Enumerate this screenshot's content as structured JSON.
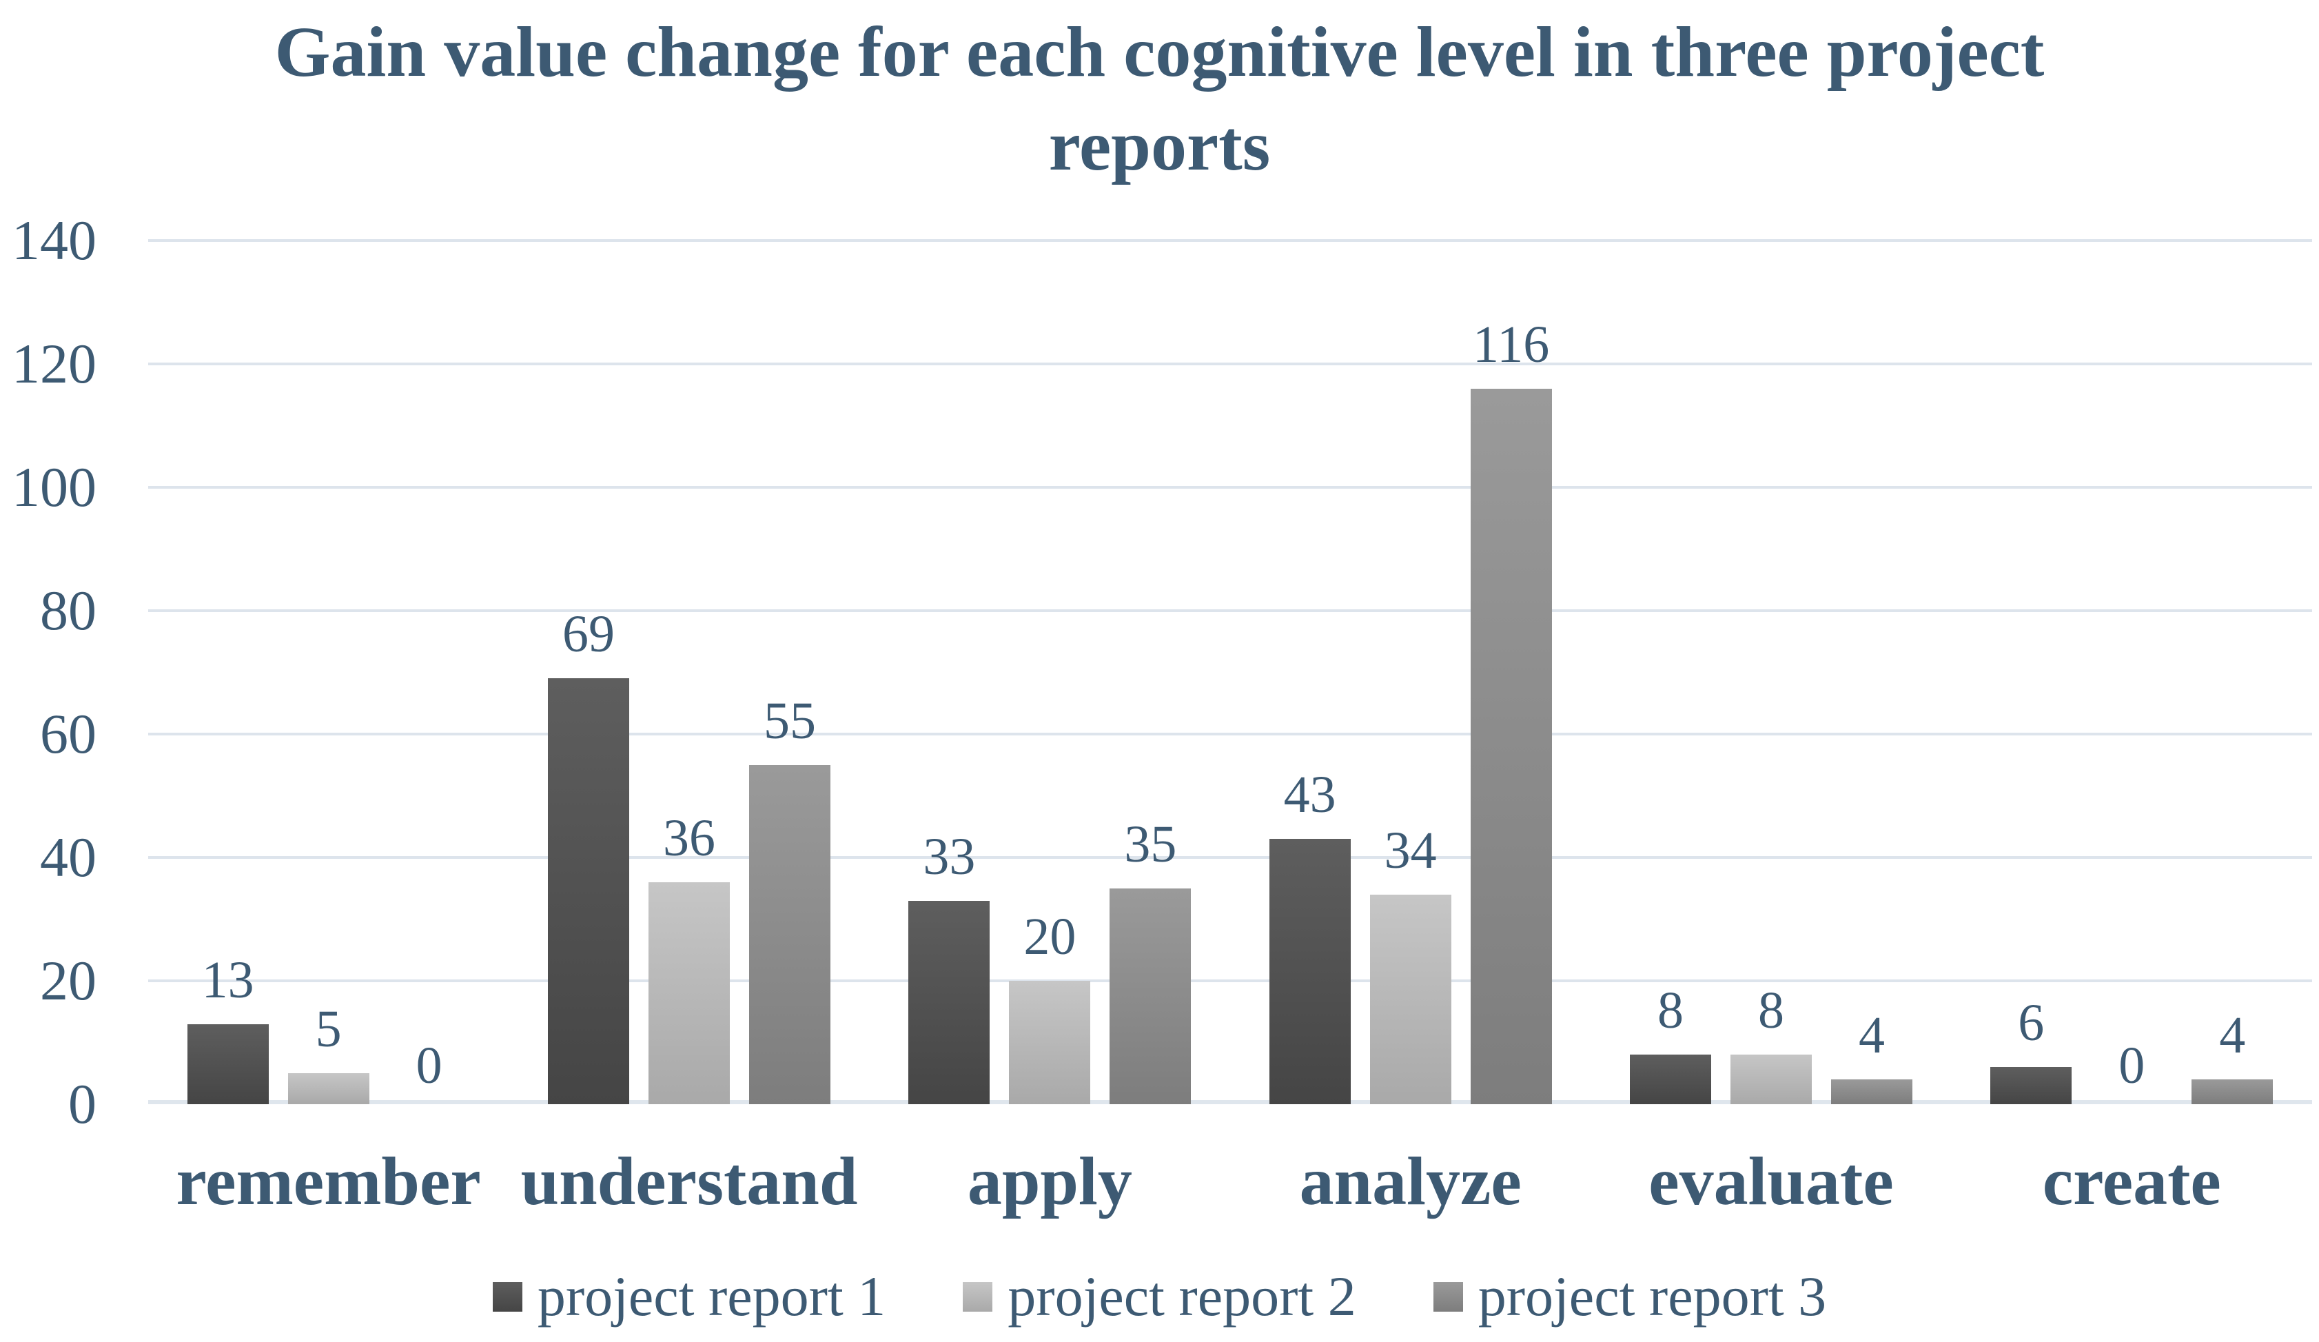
{
  "title_line1": "Gain value change for each cognitive level in three project",
  "title_line2": "reports",
  "chart_data": {
    "type": "bar",
    "title": "Gain value change for each cognitive level in three project reports",
    "categories": [
      "remember",
      "understand",
      "apply",
      "analyze",
      "evaluate",
      "create"
    ],
    "series": [
      {
        "name": "project report 1",
        "values": [
          13,
          69,
          33,
          43,
          8,
          6
        ]
      },
      {
        "name": "project report 2",
        "values": [
          5,
          36,
          20,
          34,
          8,
          0
        ]
      },
      {
        "name": "project report 3",
        "values": [
          0,
          55,
          35,
          116,
          4,
          4
        ]
      }
    ],
    "xlabel": "",
    "ylabel": "",
    "ylim": [
      0,
      140
    ],
    "yticks": [
      0,
      20,
      40,
      60,
      80,
      100,
      120,
      140
    ],
    "grid": "horizontal",
    "legend_position": "bottom",
    "data_labels": true
  },
  "colors": {
    "text": "#3d5a73",
    "gridline": "#dde4ec",
    "background": "#ffffff",
    "series": [
      {
        "name": "project report 1",
        "top": "#5e5e5e",
        "bottom": "#454545"
      },
      {
        "name": "project report 2",
        "top": "#c6c6c6",
        "bottom": "#a9a9a9"
      },
      {
        "name": "project report 3",
        "top": "#9a9a9a",
        "bottom": "#7d7d7d"
      }
    ]
  }
}
